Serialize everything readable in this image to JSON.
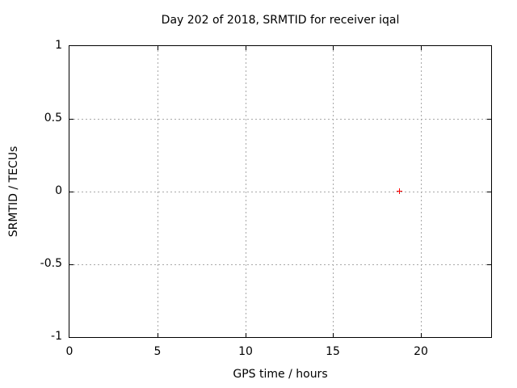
{
  "colors": {
    "background": "#ffffff",
    "frame": "#000000",
    "grid": "#a8a8a8",
    "text": "#000000",
    "marker": "#ff0000"
  },
  "chart_data": {
    "type": "scatter",
    "title": "Day 202 of 2018, SRMTID for receiver iqal",
    "xlabel": "GPS time / hours",
    "ylabel": "SRMTID / TECUs",
    "xlim": [
      0,
      24
    ],
    "ylim": [
      -1,
      1
    ],
    "grid": true,
    "legend": "none",
    "xticks": [
      {
        "value": 0,
        "label": "0"
      },
      {
        "value": 5,
        "label": "5"
      },
      {
        "value": 10,
        "label": "10"
      },
      {
        "value": 15,
        "label": "15"
      },
      {
        "value": 20,
        "label": "20"
      }
    ],
    "yticks": [
      {
        "value": -1,
        "label": "-1"
      },
      {
        "value": -0.5,
        "label": "-0.5"
      },
      {
        "value": 0,
        "label": "0"
      },
      {
        "value": 0.5,
        "label": "0.5"
      },
      {
        "value": 1,
        "label": "1"
      }
    ],
    "series": [
      {
        "name": "SRMTID",
        "marker": "plus",
        "color": "#ff0000",
        "points": [
          {
            "x": 18.8,
            "y": 0.0
          }
        ]
      }
    ]
  }
}
